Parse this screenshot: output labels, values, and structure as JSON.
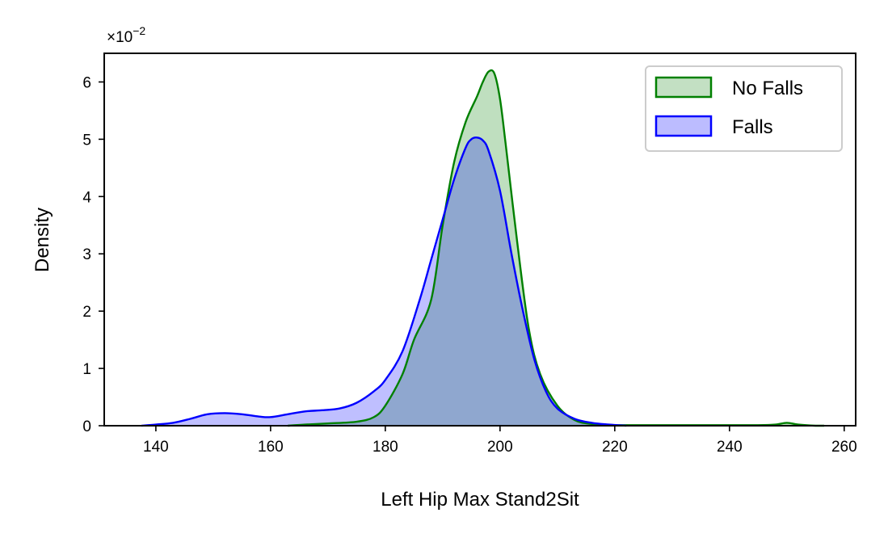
{
  "chart_data": {
    "type": "area",
    "xlabel": "Left Hip Max Stand2Sit",
    "ylabel": "Density",
    "y_scale_label": "×10",
    "y_scale_exponent": "−2",
    "xlim": [
      131,
      262
    ],
    "ylim": [
      0,
      6.5
    ],
    "x_ticks": [
      140,
      160,
      180,
      200,
      220,
      240,
      260
    ],
    "y_ticks": [
      0,
      1,
      2,
      3,
      4,
      5,
      6
    ],
    "x_tick_labels": [
      "140",
      "160",
      "180",
      "200",
      "220",
      "240",
      "260"
    ],
    "y_tick_labels": [
      "0",
      "1",
      "2",
      "3",
      "4",
      "5",
      "6"
    ],
    "grid": false,
    "legend_position": "top-right",
    "series": [
      {
        "name": "No Falls",
        "color": "#008000",
        "fill": "#c3e0c3",
        "x": [
          163,
          166,
          170,
          175,
          178,
          180,
          183,
          185,
          188,
          190,
          192,
          194,
          196,
          197,
          198,
          199,
          200,
          201,
          203,
          205,
          207,
          210,
          213,
          216,
          220,
          230,
          240,
          245,
          248,
          250,
          252,
          255,
          256.5
        ],
        "y": [
          0,
          0.02,
          0.04,
          0.07,
          0.15,
          0.35,
          0.9,
          1.5,
          2.2,
          3.5,
          4.6,
          5.3,
          5.75,
          6.0,
          6.18,
          6.15,
          5.7,
          4.9,
          3.2,
          1.7,
          0.9,
          0.35,
          0.1,
          0.03,
          0.01,
          0.01,
          0.01,
          0.01,
          0.02,
          0.05,
          0.02,
          0.0,
          0.0
        ]
      },
      {
        "name": "Falls",
        "color": "#0000ff",
        "fill": "#bcbcff",
        "x": [
          137.5,
          140,
          143,
          146,
          149,
          152,
          155,
          158,
          160,
          163,
          166,
          169,
          172,
          175,
          178,
          180,
          183,
          186,
          188,
          190,
          192,
          194,
          195,
          196,
          197,
          198,
          200,
          202,
          204,
          206,
          208,
          210,
          213,
          216,
          219,
          222
        ],
        "y": [
          0,
          0.02,
          0.05,
          0.12,
          0.2,
          0.22,
          0.2,
          0.16,
          0.15,
          0.2,
          0.25,
          0.27,
          0.3,
          0.4,
          0.6,
          0.8,
          1.3,
          2.2,
          2.9,
          3.6,
          4.3,
          4.85,
          5.0,
          5.03,
          4.98,
          4.8,
          4.1,
          3.0,
          2.0,
          1.15,
          0.6,
          0.3,
          0.12,
          0.05,
          0.02,
          0.0
        ]
      }
    ]
  }
}
